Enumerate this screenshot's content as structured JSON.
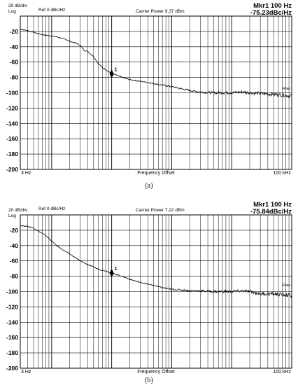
{
  "chart_data": [
    {
      "type": "line",
      "caption": "(a)",
      "header": {
        "scale": "20 dB/div",
        "scale_mode": "Log",
        "ref": "Ref  0 dBc/Hz",
        "carrier": "Carrier Power 9.37 dBm",
        "marker_freq": "Mkr1 100 Hz",
        "marker_val": "-75.23dBc/Hz"
      },
      "xlabel": "Frequency Offset",
      "x_start_label": "3 Hz",
      "x_end_label": "100 kHz",
      "x_scale": "log",
      "xlim": [
        3,
        100000
      ],
      "ylim": [
        -200,
        0
      ],
      "y_ticks": [
        "-20",
        "-40",
        "-60",
        "-80",
        "-100",
        "-120",
        "-140",
        "-160",
        "-180",
        "-200"
      ],
      "trace_label": "Raw",
      "marker": {
        "label": "1",
        "x": 100,
        "y": -75.23
      },
      "series": [
        {
          "x": [
            3,
            4,
            5,
            6,
            8,
            10,
            12,
            15,
            18,
            20,
            25,
            30,
            35,
            40,
            50,
            60,
            70,
            80,
            100,
            120,
            150,
            200,
            300,
            500,
            700,
            1000,
            1500,
            2000,
            3000,
            5000,
            7000,
            10000,
            15000,
            20000,
            30000,
            50000,
            70000,
            100000
          ],
          "y": [
            -17,
            -19,
            -21,
            -23,
            -25,
            -26,
            -27,
            -29,
            -31,
            -33,
            -35,
            -38,
            -45,
            -46,
            -53,
            -62,
            -67,
            -70,
            -75,
            -77,
            -80,
            -83,
            -85,
            -88,
            -90,
            -92,
            -95,
            -97,
            -99,
            -100,
            -100,
            -100,
            -99,
            -100,
            -101,
            -102,
            -103,
            -104
          ]
        }
      ]
    },
    {
      "type": "line",
      "caption": "(b)",
      "header": {
        "scale": "20 dB/div",
        "scale_mode": "Log",
        "ref": "Ref  0 dBc/Hz",
        "carrier": "Carrier Power 7.22 dBm",
        "marker_freq": "Mkr1 100 Hz",
        "marker_val": "-75.84dBc/Hz"
      },
      "xlabel": "Frequency Offset",
      "x_start_label": "3 Hz",
      "x_end_label": "100 kHz",
      "x_scale": "log",
      "xlim": [
        3,
        100000
      ],
      "ylim": [
        -200,
        0
      ],
      "y_ticks": [
        "-20",
        "-40",
        "-60",
        "-80",
        "-100",
        "-120",
        "-140",
        "-160",
        "-180",
        "-200"
      ],
      "trace_label": "Raw",
      "marker": {
        "label": "1",
        "x": 100,
        "y": -75.84
      },
      "series": [
        {
          "x": [
            3,
            4,
            5,
            6,
            8,
            10,
            12,
            15,
            20,
            25,
            30,
            40,
            50,
            60,
            80,
            100,
            150,
            200,
            300,
            500,
            700,
            1000,
            1500,
            2000,
            3000,
            5000,
            7000,
            10000,
            15000,
            20000,
            30000,
            50000,
            70000,
            100000
          ],
          "y": [
            -14,
            -15,
            -17,
            -21,
            -27,
            -34,
            -40,
            -45,
            -51,
            -56,
            -60,
            -65,
            -68,
            -71,
            -73,
            -76,
            -80,
            -84,
            -88,
            -92,
            -95,
            -97,
            -98,
            -99,
            -99,
            -100,
            -100,
            -100,
            -99,
            -100,
            -103,
            -103,
            -104,
            -105
          ]
        }
      ]
    }
  ]
}
